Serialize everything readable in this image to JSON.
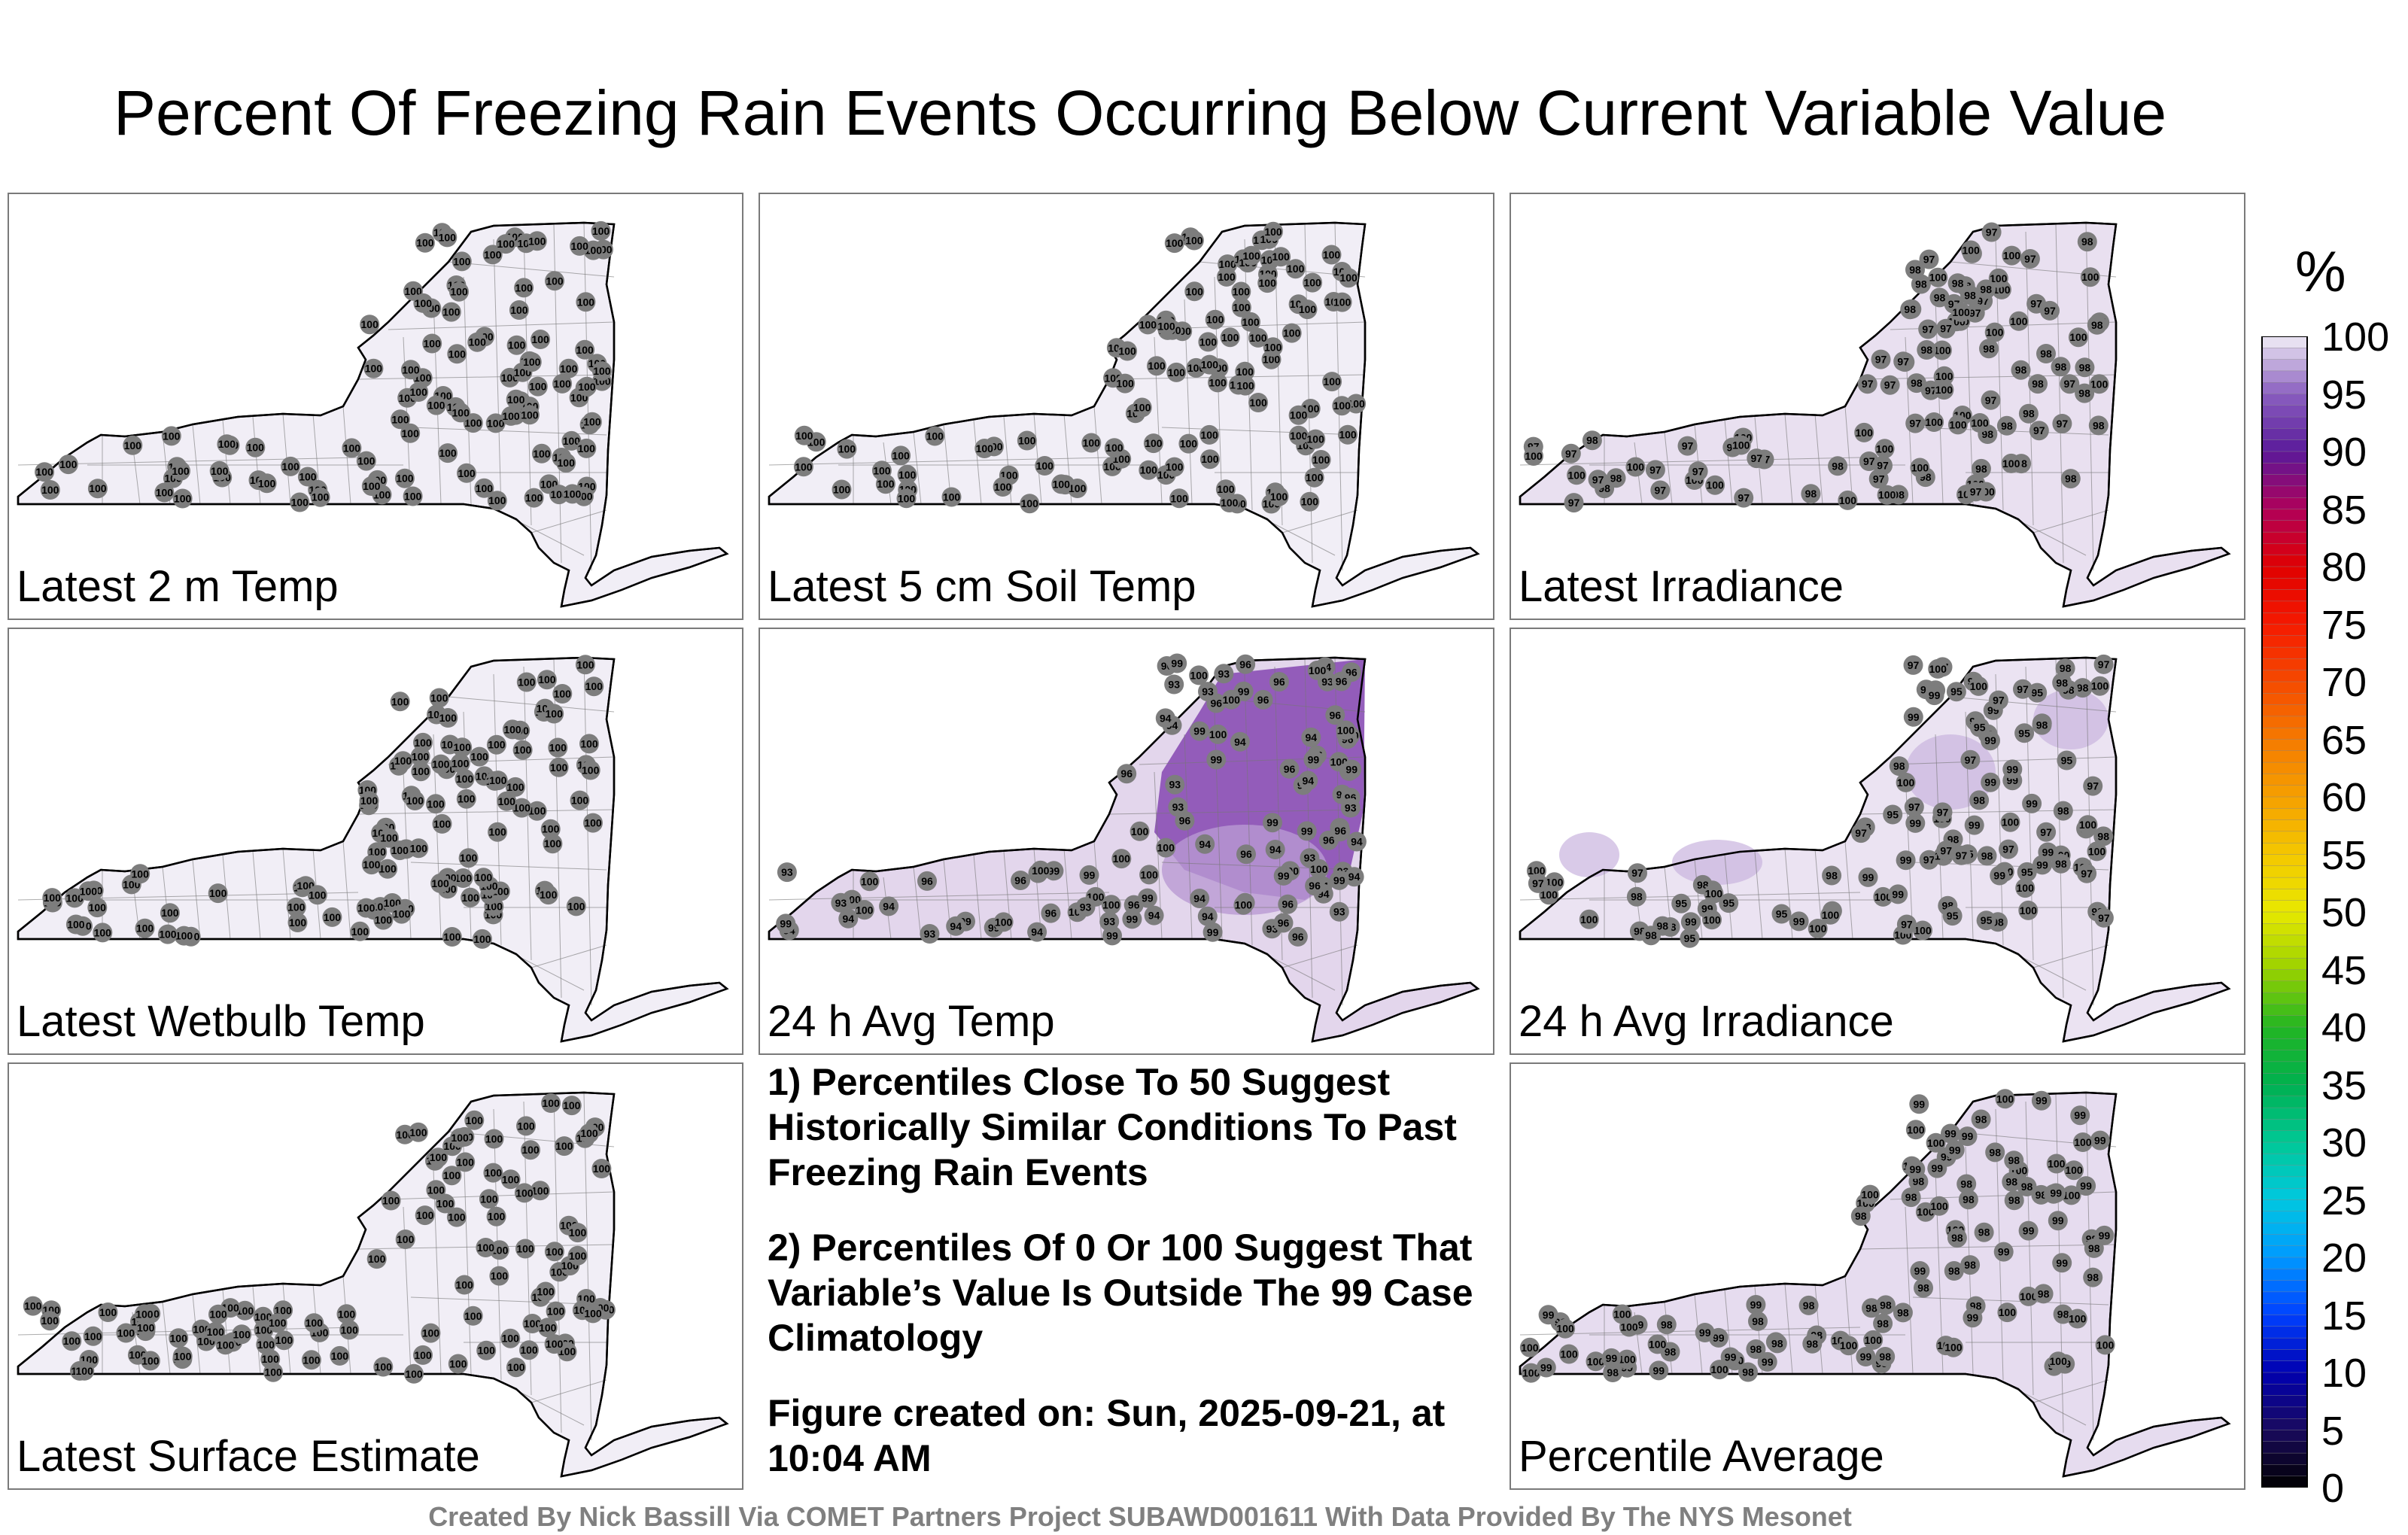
{
  "title": "Percent Of Freezing Rain Events Occurring Below Current Variable Value",
  "panels": [
    {
      "label": "Latest 2 m Temp",
      "fill": "#f1eef6"
    },
    {
      "label": "Latest 5 cm Soil Temp",
      "fill": "#f1eef6"
    },
    {
      "label": "Latest Irradiance",
      "fill": "#e9e0f0"
    },
    {
      "label": "Latest Wetbulb Temp",
      "fill": "#f1eef6"
    },
    {
      "label": "24 h Avg Temp",
      "fill": "#e3d6ec"
    },
    {
      "label": "24 h Avg Irradiance",
      "fill": "#ebe3f2"
    },
    {
      "label": "Latest Surface Estimate",
      "fill": "#f1eef6"
    },
    {
      "label": "Percentile Average",
      "fill": "#e6dcef"
    }
  ],
  "station_values": {
    "panel_1": [
      "100"
    ],
    "panel_2": [
      "100"
    ],
    "panel_3": [
      "100",
      "97",
      "98"
    ],
    "panel_4": [
      "100"
    ],
    "panel_5": [
      "93",
      "94",
      "96",
      "99",
      "100"
    ],
    "panel_6": [
      "97",
      "98",
      "95",
      "99",
      "100"
    ],
    "panel_7": [
      "100"
    ],
    "panel_8": [
      "99",
      "98",
      "100"
    ]
  },
  "notes": [
    "1) Percentiles Close To 50 Suggest Historically Similar Conditions To Past Freezing Rain Events",
    "2) Percentiles Of 0 Or 100 Suggest That Variable’s Value Is Outside The 99 Case Climatology",
    "Figure created on: Sun, 2025-09-21, at 10:04 AM"
  ],
  "footer": "Created By Nick Bassill Via COMET Partners Project SUBAWD001611 With Data Provided By The NYS Mesonet",
  "colorbar": {
    "unit": "%",
    "ticks": [
      "100",
      "95",
      "90",
      "85",
      "80",
      "75",
      "70",
      "65",
      "60",
      "55",
      "50",
      "45",
      "40",
      "35",
      "30",
      "25",
      "20",
      "15",
      "10",
      "5",
      "0"
    ],
    "range": [
      0,
      100
    ]
  }
}
